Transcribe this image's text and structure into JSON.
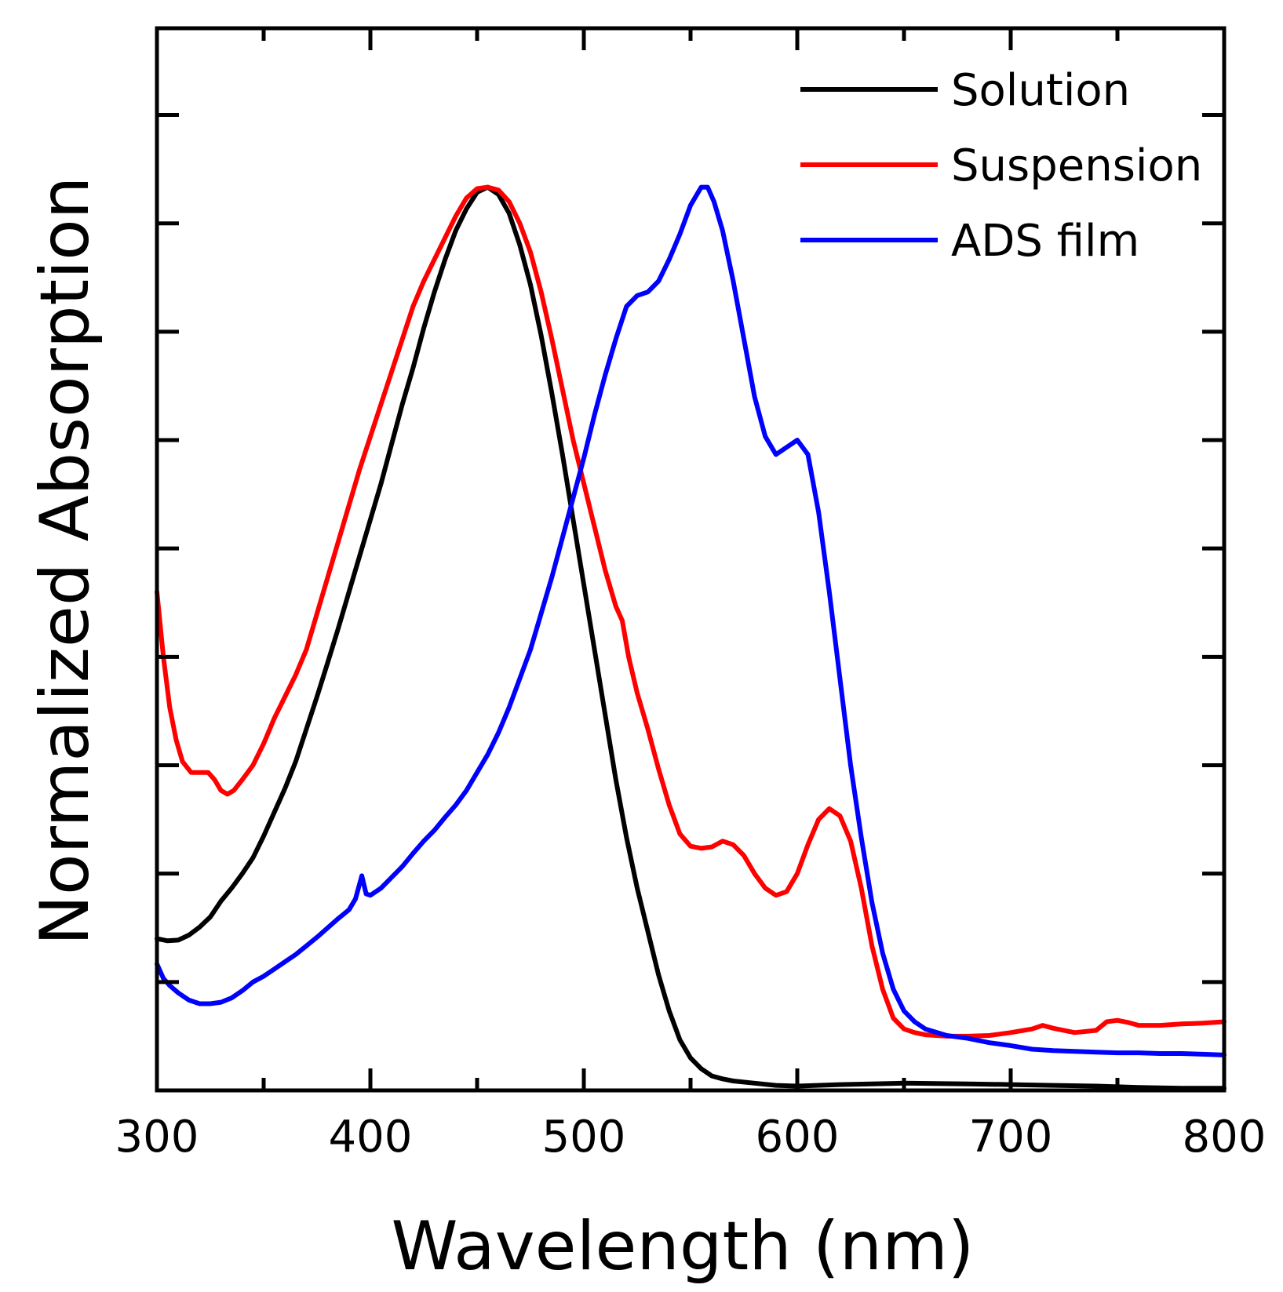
{
  "chart_data": {
    "type": "line",
    "xlabel": "Wavelength (nm)",
    "ylabel": "Normalized Absorption",
    "xlim": [
      300,
      800
    ],
    "ylim": [
      0,
      1.47
    ],
    "x_ticks": [
      300,
      400,
      500,
      600,
      700,
      800
    ],
    "x_minor_ticks": [
      350,
      450,
      550,
      650,
      750
    ],
    "y_ticks": [
      0.15,
      0.3,
      0.45,
      0.6,
      0.75,
      0.9,
      1.05,
      1.2,
      1.35
    ],
    "y_tick_labels_visible": false,
    "legend_position": "top-right",
    "grid": false,
    "series": [
      {
        "name": "Solution",
        "color": "#000000",
        "points": [
          [
            300,
            0.21
          ],
          [
            305,
            0.207
          ],
          [
            310,
            0.208
          ],
          [
            315,
            0.215
          ],
          [
            320,
            0.226
          ],
          [
            325,
            0.24
          ],
          [
            330,
            0.262
          ],
          [
            335,
            0.28
          ],
          [
            340,
            0.3
          ],
          [
            345,
            0.322
          ],
          [
            350,
            0.352
          ],
          [
            355,
            0.385
          ],
          [
            360,
            0.418
          ],
          [
            365,
            0.455
          ],
          [
            370,
            0.5
          ],
          [
            375,
            0.545
          ],
          [
            380,
            0.592
          ],
          [
            385,
            0.64
          ],
          [
            390,
            0.69
          ],
          [
            395,
            0.74
          ],
          [
            400,
            0.79
          ],
          [
            405,
            0.84
          ],
          [
            410,
            0.895
          ],
          [
            415,
            0.95
          ],
          [
            420,
            1.0
          ],
          [
            425,
            1.055
          ],
          [
            430,
            1.105
          ],
          [
            435,
            1.15
          ],
          [
            440,
            1.19
          ],
          [
            445,
            1.22
          ],
          [
            450,
            1.243
          ],
          [
            455,
            1.25
          ],
          [
            460,
            1.24
          ],
          [
            465,
            1.214
          ],
          [
            470,
            1.17
          ],
          [
            475,
            1.115
          ],
          [
            480,
            1.045
          ],
          [
            485,
            0.965
          ],
          [
            490,
            0.88
          ],
          [
            495,
            0.79
          ],
          [
            500,
            0.7
          ],
          [
            505,
            0.61
          ],
          [
            510,
            0.52
          ],
          [
            515,
            0.43
          ],
          [
            520,
            0.35
          ],
          [
            525,
            0.28
          ],
          [
            530,
            0.22
          ],
          [
            535,
            0.16
          ],
          [
            540,
            0.11
          ],
          [
            545,
            0.07
          ],
          [
            550,
            0.045
          ],
          [
            555,
            0.03
          ],
          [
            560,
            0.02
          ],
          [
            565,
            0.016
          ],
          [
            570,
            0.013
          ],
          [
            580,
            0.01
          ],
          [
            590,
            0.007
          ],
          [
            600,
            0.006
          ],
          [
            620,
            0.008
          ],
          [
            650,
            0.01
          ],
          [
            680,
            0.009
          ],
          [
            700,
            0.008
          ],
          [
            720,
            0.007
          ],
          [
            740,
            0.006
          ],
          [
            760,
            0.004
          ],
          [
            780,
            0.003
          ],
          [
            800,
            0.003
          ]
        ]
      },
      {
        "name": "Suspension",
        "color": "#ff0000",
        "points": [
          [
            300,
            0.69
          ],
          [
            303,
            0.6
          ],
          [
            306,
            0.53
          ],
          [
            309,
            0.485
          ],
          [
            312,
            0.455
          ],
          [
            316,
            0.44
          ],
          [
            320,
            0.44
          ],
          [
            324,
            0.44
          ],
          [
            327,
            0.43
          ],
          [
            330,
            0.415
          ],
          [
            333,
            0.41
          ],
          [
            336,
            0.415
          ],
          [
            340,
            0.43
          ],
          [
            345,
            0.45
          ],
          [
            350,
            0.48
          ],
          [
            355,
            0.515
          ],
          [
            360,
            0.545
          ],
          [
            365,
            0.575
          ],
          [
            370,
            0.61
          ],
          [
            375,
            0.66
          ],
          [
            380,
            0.71
          ],
          [
            385,
            0.76
          ],
          [
            390,
            0.81
          ],
          [
            395,
            0.86
          ],
          [
            400,
            0.905
          ],
          [
            405,
            0.95
          ],
          [
            410,
            0.995
          ],
          [
            415,
            1.04
          ],
          [
            420,
            1.085
          ],
          [
            425,
            1.12
          ],
          [
            430,
            1.15
          ],
          [
            435,
            1.18
          ],
          [
            440,
            1.21
          ],
          [
            445,
            1.235
          ],
          [
            450,
            1.248
          ],
          [
            455,
            1.25
          ],
          [
            460,
            1.246
          ],
          [
            465,
            1.23
          ],
          [
            470,
            1.2
          ],
          [
            475,
            1.16
          ],
          [
            480,
            1.105
          ],
          [
            485,
            1.04
          ],
          [
            490,
            0.97
          ],
          [
            495,
            0.9
          ],
          [
            500,
            0.84
          ],
          [
            505,
            0.78
          ],
          [
            510,
            0.72
          ],
          [
            515,
            0.67
          ],
          [
            518,
            0.65
          ],
          [
            521,
            0.6
          ],
          [
            525,
            0.55
          ],
          [
            530,
            0.5
          ],
          [
            535,
            0.445
          ],
          [
            540,
            0.395
          ],
          [
            545,
            0.355
          ],
          [
            550,
            0.338
          ],
          [
            555,
            0.335
          ],
          [
            560,
            0.337
          ],
          [
            565,
            0.345
          ],
          [
            570,
            0.34
          ],
          [
            575,
            0.325
          ],
          [
            580,
            0.3
          ],
          [
            585,
            0.28
          ],
          [
            590,
            0.27
          ],
          [
            595,
            0.275
          ],
          [
            600,
            0.3
          ],
          [
            605,
            0.34
          ],
          [
            610,
            0.375
          ],
          [
            615,
            0.39
          ],
          [
            620,
            0.38
          ],
          [
            625,
            0.345
          ],
          [
            630,
            0.28
          ],
          [
            635,
            0.2
          ],
          [
            640,
            0.14
          ],
          [
            645,
            0.1
          ],
          [
            650,
            0.085
          ],
          [
            655,
            0.08
          ],
          [
            660,
            0.077
          ],
          [
            670,
            0.075
          ],
          [
            680,
            0.075
          ],
          [
            690,
            0.076
          ],
          [
            700,
            0.08
          ],
          [
            710,
            0.085
          ],
          [
            715,
            0.09
          ],
          [
            720,
            0.086
          ],
          [
            730,
            0.08
          ],
          [
            740,
            0.083
          ],
          [
            745,
            0.095
          ],
          [
            750,
            0.097
          ],
          [
            755,
            0.094
          ],
          [
            760,
            0.09
          ],
          [
            770,
            0.09
          ],
          [
            780,
            0.092
          ],
          [
            790,
            0.093
          ],
          [
            800,
            0.095
          ]
        ]
      },
      {
        "name": "ADS film",
        "color": "#0000ff",
        "points": [
          [
            300,
            0.175
          ],
          [
            303,
            0.155
          ],
          [
            306,
            0.145
          ],
          [
            310,
            0.135
          ],
          [
            315,
            0.125
          ],
          [
            320,
            0.12
          ],
          [
            325,
            0.12
          ],
          [
            330,
            0.122
          ],
          [
            335,
            0.128
          ],
          [
            340,
            0.138
          ],
          [
            345,
            0.15
          ],
          [
            350,
            0.158
          ],
          [
            355,
            0.168
          ],
          [
            360,
            0.178
          ],
          [
            365,
            0.188
          ],
          [
            370,
            0.2
          ],
          [
            375,
            0.212
          ],
          [
            380,
            0.225
          ],
          [
            385,
            0.238
          ],
          [
            390,
            0.25
          ],
          [
            393,
            0.265
          ],
          [
            396,
            0.297
          ],
          [
            398,
            0.272
          ],
          [
            400,
            0.27
          ],
          [
            405,
            0.28
          ],
          [
            410,
            0.295
          ],
          [
            415,
            0.31
          ],
          [
            420,
            0.328
          ],
          [
            425,
            0.345
          ],
          [
            430,
            0.36
          ],
          [
            435,
            0.378
          ],
          [
            440,
            0.395
          ],
          [
            445,
            0.415
          ],
          [
            450,
            0.44
          ],
          [
            455,
            0.465
          ],
          [
            460,
            0.495
          ],
          [
            465,
            0.53
          ],
          [
            470,
            0.57
          ],
          [
            475,
            0.61
          ],
          [
            480,
            0.66
          ],
          [
            485,
            0.71
          ],
          [
            490,
            0.765
          ],
          [
            495,
            0.82
          ],
          [
            500,
            0.875
          ],
          [
            505,
            0.935
          ],
          [
            510,
            0.99
          ],
          [
            515,
            1.04
          ],
          [
            520,
            1.085
          ],
          [
            525,
            1.1
          ],
          [
            530,
            1.105
          ],
          [
            535,
            1.12
          ],
          [
            540,
            1.15
          ],
          [
            545,
            1.185
          ],
          [
            550,
            1.225
          ],
          [
            555,
            1.25
          ],
          [
            558,
            1.25
          ],
          [
            561,
            1.23
          ],
          [
            565,
            1.19
          ],
          [
            570,
            1.12
          ],
          [
            575,
            1.04
          ],
          [
            580,
            0.96
          ],
          [
            585,
            0.905
          ],
          [
            590,
            0.88
          ],
          [
            595,
            0.89
          ],
          [
            600,
            0.9
          ],
          [
            605,
            0.88
          ],
          [
            610,
            0.8
          ],
          [
            615,
            0.69
          ],
          [
            620,
            0.57
          ],
          [
            625,
            0.45
          ],
          [
            630,
            0.35
          ],
          [
            635,
            0.26
          ],
          [
            640,
            0.19
          ],
          [
            645,
            0.14
          ],
          [
            650,
            0.11
          ],
          [
            655,
            0.095
          ],
          [
            660,
            0.085
          ],
          [
            670,
            0.076
          ],
          [
            680,
            0.072
          ],
          [
            690,
            0.066
          ],
          [
            700,
            0.062
          ],
          [
            710,
            0.057
          ],
          [
            720,
            0.055
          ],
          [
            730,
            0.054
          ],
          [
            740,
            0.053
          ],
          [
            750,
            0.052
          ],
          [
            760,
            0.052
          ],
          [
            770,
            0.051
          ],
          [
            780,
            0.051
          ],
          [
            790,
            0.05
          ],
          [
            800,
            0.049
          ]
        ]
      }
    ]
  }
}
